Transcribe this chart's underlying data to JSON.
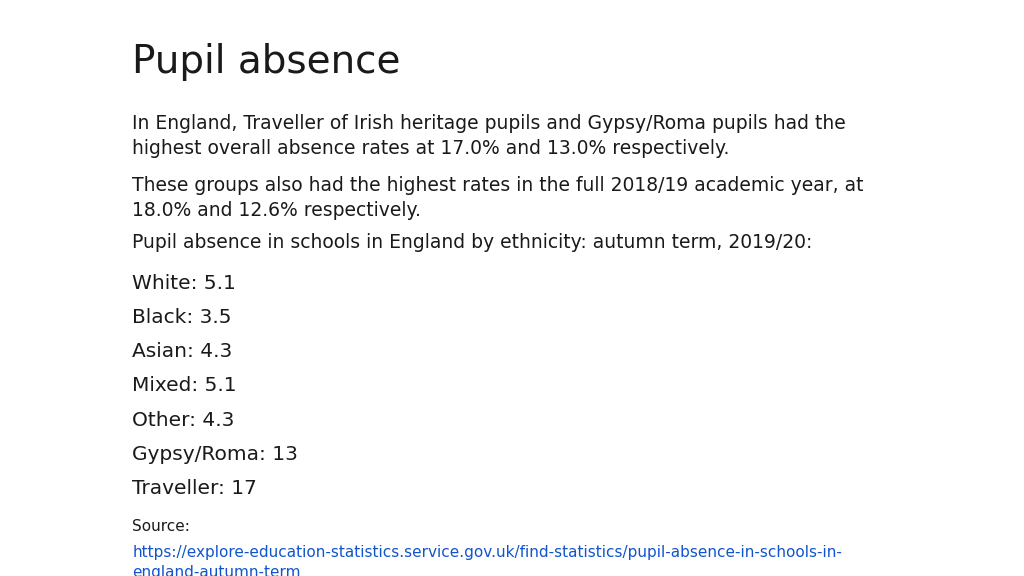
{
  "title": "Pupil absence",
  "title_fontsize": 28,
  "title_fontweight": "normal",
  "body_fontsize": 13.5,
  "para1": "In England, Traveller of Irish heritage pupils and Gypsy/Roma pupils had the\nhighest overall absence rates at 17.0% and 13.0% respectively.",
  "para2": "These groups also had the highest rates in the full 2018/19 academic year, at\n18.0% and 12.6% respectively.",
  "para3": "Pupil absence in schools in England by ethnicity: autumn term, 2019/20:",
  "stats": [
    "White: 5.1",
    "Black: 3.5",
    "Asian: 4.3",
    "Mixed: 5.1",
    "Other: 4.3",
    "Gypsy/Roma: 13",
    "Traveller: 17"
  ],
  "source_label": "Source:",
  "source_url_line1": "https://explore-education-statistics.service.gov.uk/find-statistics/pupil-absence-in-schools-in-",
  "source_url_line2": "england-autumn-term",
  "bg_color": "#ffffff",
  "text_color": "#1a1a1a",
  "url_color": "#1155CC",
  "source_fontsize": 11,
  "stats_fontsize": 14.5
}
